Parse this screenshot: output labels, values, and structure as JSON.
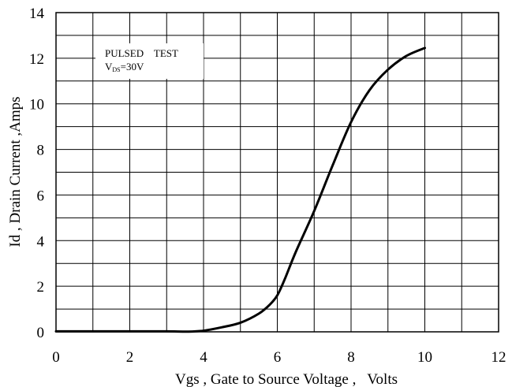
{
  "chart_data": {
    "type": "line",
    "title": "",
    "xlabel": "Vgs , Gate to Source Voltage ,   Volts",
    "ylabel": "Id , Drain Current ,Amps",
    "xlim": [
      0,
      12
    ],
    "ylim": [
      0,
      14
    ],
    "x_ticks": [
      "0",
      "2",
      "4",
      "6",
      "8",
      "10",
      "12"
    ],
    "y_ticks": [
      "0",
      "2",
      "4",
      "6",
      "8",
      "10",
      "12",
      "14"
    ],
    "grid": true,
    "annotation": {
      "line1": "PULSED    TEST",
      "line2_prefix": "V",
      "line2_sub": "DS",
      "line2_suffix": "=30V"
    },
    "series": [
      {
        "x": [
          0,
          1,
          2,
          3,
          3.6,
          4,
          4.5,
          5,
          5.5,
          5.8,
          6,
          6.2,
          6.5,
          7,
          7.5,
          8,
          8.5,
          9,
          9.5,
          10
        ],
        "y": [
          0.02,
          0.02,
          0.02,
          0.02,
          0.01,
          0.05,
          0.2,
          0.4,
          0.8,
          1.2,
          1.6,
          2.3,
          3.5,
          5.3,
          7.3,
          9.2,
          10.6,
          11.5,
          12.1,
          12.45
        ]
      }
    ]
  }
}
